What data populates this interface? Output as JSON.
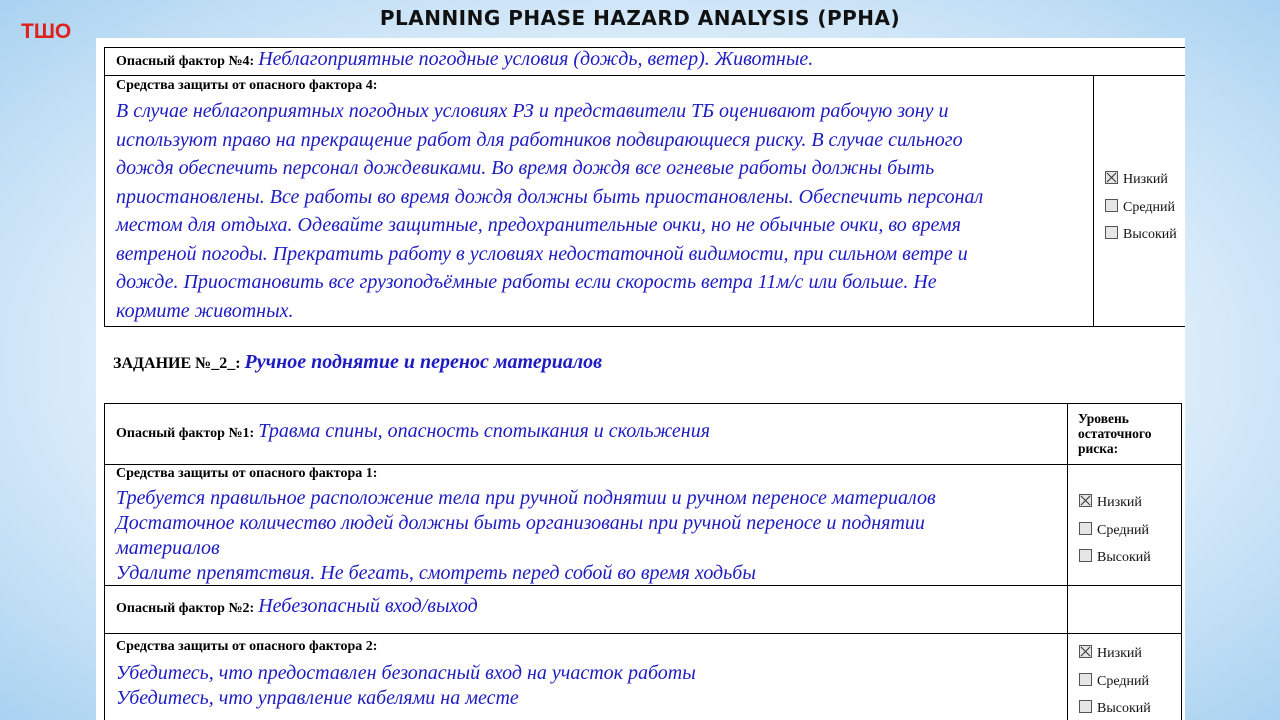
{
  "slide": {
    "badge": "ТШО",
    "title": "PLANNING PHASE HAZARD ANALYSIS (PPHA)"
  },
  "block1": {
    "hazard_label": "Опасный фактор №4:",
    "hazard_text": "Неблагоприятные погодные условия (дождь, ветер). Животные.",
    "controls_label": "Средства защиты от опасного фактора 4:",
    "controls_lines": [
      "В случае неблагоприятных погодных условиях РЗ и представители ТБ оценивают рабочую зону и",
      "используют право на прекращение работ для работников подвирающиеся риску. В случае сильного",
      "дождя обеспечить персонал дождевиками.  Во время дождя все огневые работы должны быть",
      "приостановлены. Все работы во время дождя должны быть приостановлены. Обеспечить персонал",
      "местом для отдыха. Одевайте защитные, предохранительные очки, но не обычные очки, во время",
      "ветреной погоды. Прекратить работу в условиях недостаточной видимости, при сильном ветре и",
      "дожде.  Приостановить все грузоподъёмные работы если скорость ветра 11м/с или больше. Не",
      "кормите животных."
    ],
    "risk": {
      "low": "Низкий",
      "medium": "Средний",
      "high": "Высокий",
      "selected": "low"
    }
  },
  "task": {
    "label": "ЗАДАНИЕ №_2_:",
    "text": "Ручное поднятие и перенос материалов"
  },
  "table2": {
    "risk_header": [
      "Уровень",
      "остаточного",
      "риска:"
    ],
    "hazard1_label": "Опасный фактор №1:",
    "hazard1_text": "Травма спины, опасность спотыкания и скольжения",
    "controls1_label": "Средства защиты от опасного фактора 1:",
    "controls1_lines": [
      "Требуется правильное расположение тела при ручной поднятии и ручном переносе материалов",
      "Достаточное количество людей должны быть организованы при ручной переносе и поднятии",
      "материалов",
      "Удалите препятствия. Не бегать, смотреть перед собой во время ходьбы"
    ],
    "risk1": {
      "low": "Низкий",
      "medium": "Средний",
      "high": "Высокий",
      "selected": "low"
    },
    "hazard2_label": "Опасный фактор №2:",
    "hazard2_text": "Небезопасный вход/выход",
    "controls2_label": "Средства защиты от опасного фактора 2:",
    "controls2_lines": [
      "Убедитесь, что  предоставлен безопасный вход на участок работы",
      "Убедитесь, что управление кабелями на месте"
    ],
    "risk2": {
      "low": "Низкий",
      "medium": "Средний",
      "high": "Высокий",
      "selected": "low"
    }
  }
}
